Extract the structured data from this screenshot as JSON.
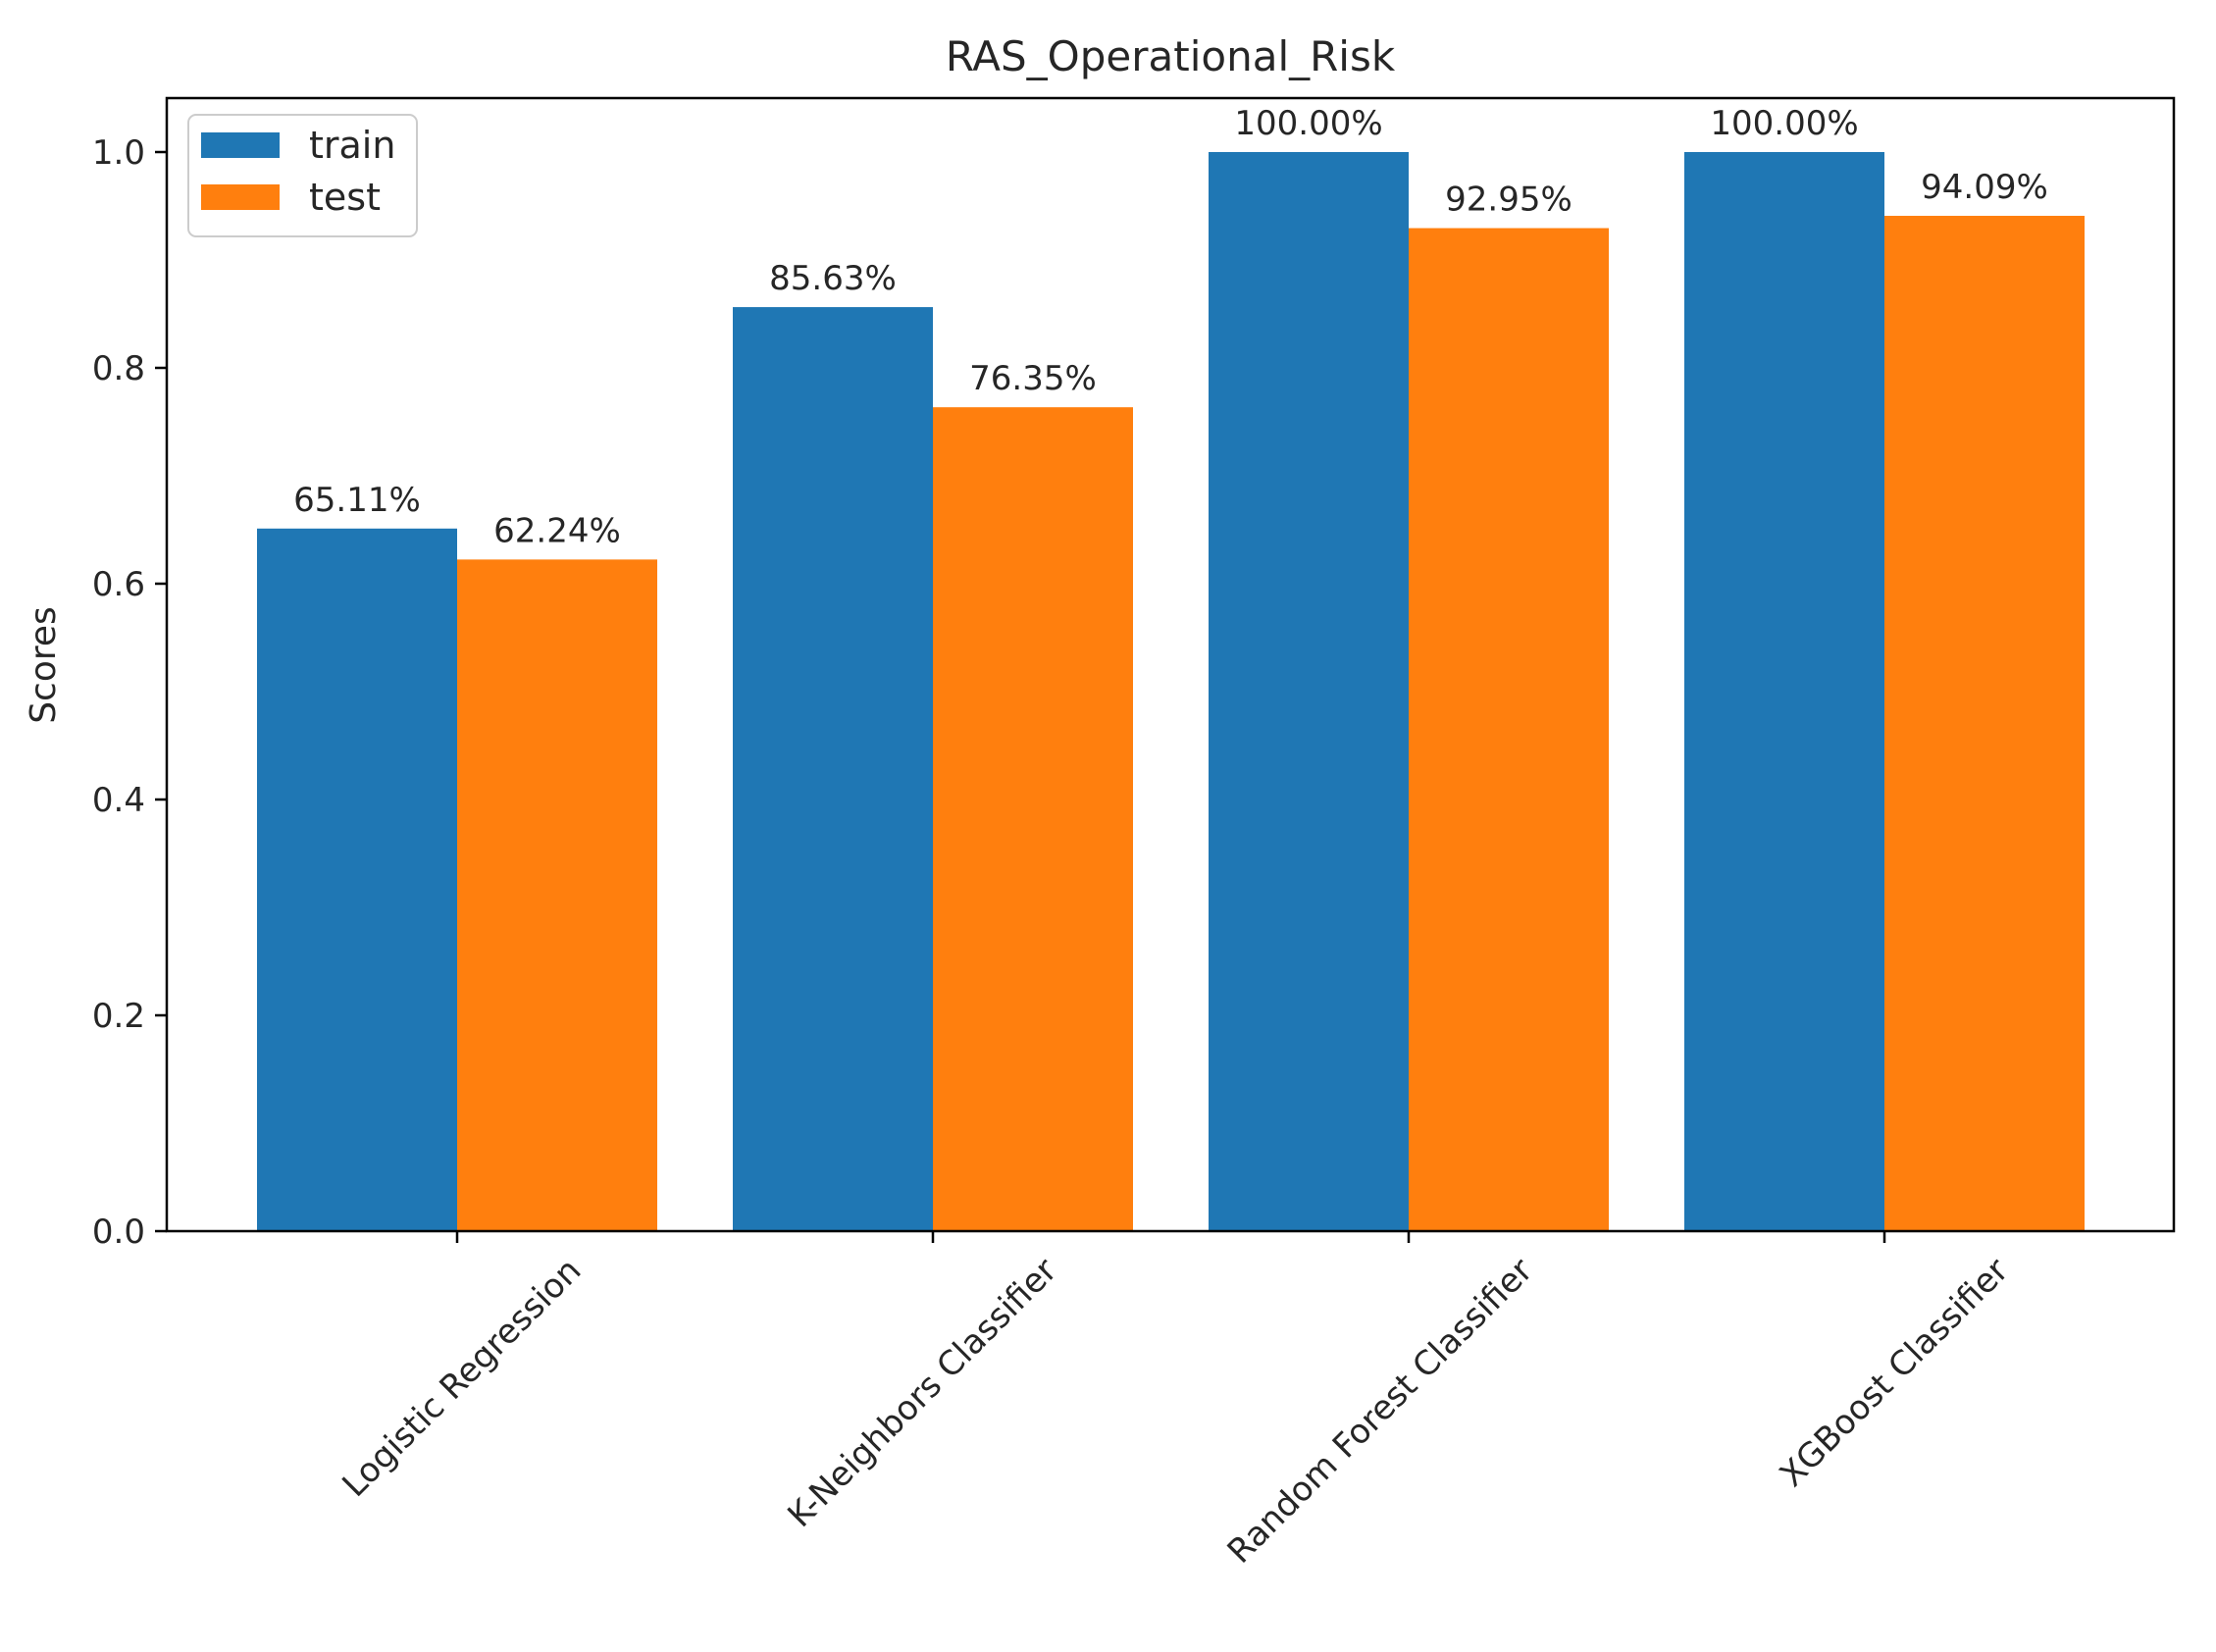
{
  "chart_data": {
    "type": "bar",
    "title": "RAS_Operational_Risk",
    "xlabel": "",
    "ylabel": "Scores",
    "ylim": [
      0,
      1.05
    ],
    "yticks": [
      0.0,
      0.2,
      0.4,
      0.6,
      0.8,
      1.0
    ],
    "ytick_labels": [
      "0.0",
      "0.2",
      "0.4",
      "0.6",
      "0.8",
      "1.0"
    ],
    "categories": [
      "Logistic Regression",
      "K-Neighbors Classifier",
      "Random Forest Classifier",
      "XGBoost Classifier"
    ],
    "series": [
      {
        "name": "train",
        "color": "#1f77b4",
        "values": [
          0.6511,
          0.8563,
          1.0,
          1.0
        ],
        "labels": [
          "65.11%",
          "85.63%",
          "100.00%",
          "100.00%"
        ]
      },
      {
        "name": "test",
        "color": "#ff7f0e",
        "values": [
          0.6224,
          0.7635,
          0.9295,
          0.9409
        ],
        "labels": [
          "62.24%",
          "76.35%",
          "92.95%",
          "94.09%"
        ]
      }
    ],
    "grid": false,
    "legend_position": "top-left",
    "xtick_rotation": 45
  }
}
